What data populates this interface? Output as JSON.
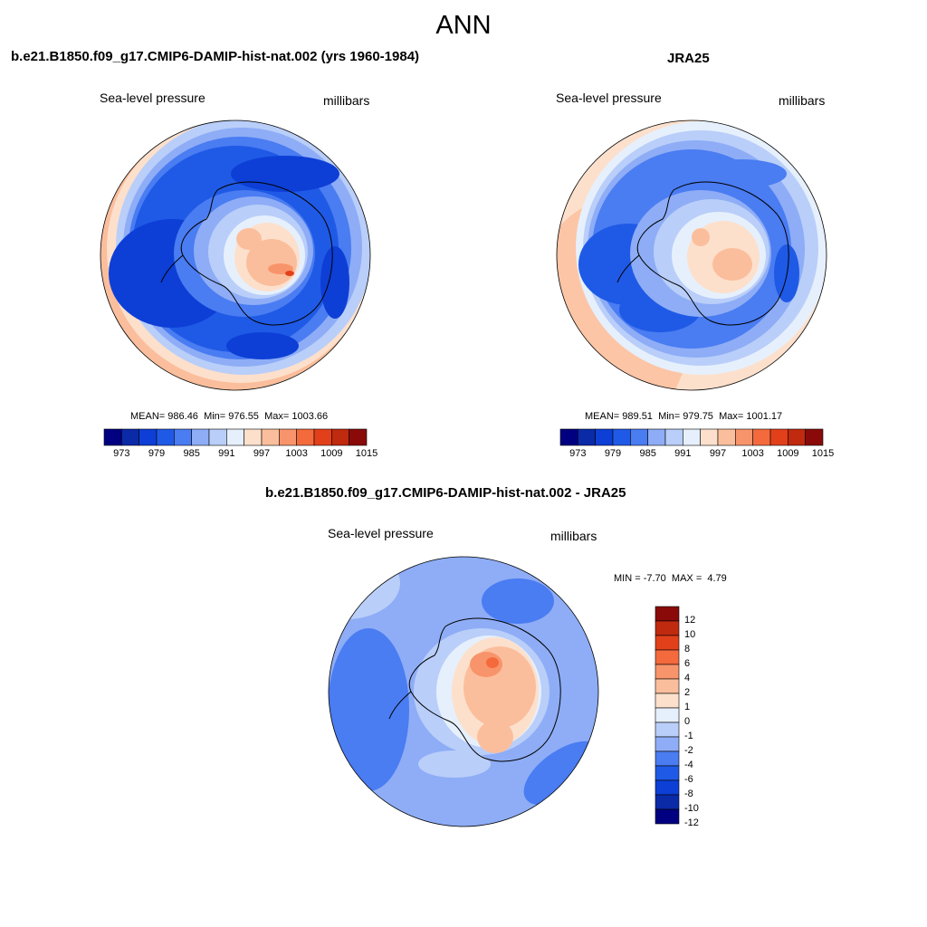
{
  "main_title": "ANN",
  "variable_label": "Sea-level pressure",
  "units_label": "millibars",
  "panels": [
    {
      "title": "b.e21.B1850.f09_g17.CMIP6-DAMIP-hist-nat.002 (yrs 1960-1984)",
      "stats": {
        "mean_label": "MEAN=",
        "mean": "986.46",
        "min_label": "Min=",
        "min": "976.55",
        "max_label": "Max=",
        "max": "1003.66"
      }
    },
    {
      "title": "JRA25",
      "stats": {
        "mean_label": "MEAN=",
        "mean": "989.51",
        "min_label": "Min=",
        "min": "979.75",
        "max_label": "Max=",
        "max": "1001.17"
      }
    }
  ],
  "diff_panel": {
    "title": "b.e21.B1850.f09_g17.CMIP6-DAMIP-hist-nat.002 - JRA25",
    "stats": {
      "min_label": "MIN =",
      "min": "-7.70",
      "max_label": "MAX =",
      "max": "4.79"
    }
  },
  "abs_colorbar": {
    "colors": [
      "#000080",
      "#0a2aa8",
      "#0d3fd6",
      "#1f5ae6",
      "#4a7cf2",
      "#8eadf6",
      "#b9cef9",
      "#e6f0fc",
      "#fce0cc",
      "#fbbe9c",
      "#f8946b",
      "#f46a3d",
      "#e2401b",
      "#c02a0e",
      "#8a0a0a"
    ],
    "tick_labels": [
      "973",
      "979",
      "985",
      "991",
      "997",
      "1003",
      "1009",
      "1015"
    ]
  },
  "diff_colorbar": {
    "colors": [
      "#000080",
      "#0a2aa8",
      "#0d3fd6",
      "#1f5ae6",
      "#4a7cf2",
      "#8eadf6",
      "#b9cef9",
      "#e6f0fc",
      "#fce0cc",
      "#fbbe9c",
      "#f8946b",
      "#f46a3d",
      "#e2401b",
      "#c02a0e",
      "#8a0a0a"
    ],
    "tick_labels": [
      "12",
      "10",
      "8",
      "6",
      "4",
      "2",
      "1",
      "0",
      "-1",
      "-2",
      "-4",
      "-6",
      "-8",
      "-10",
      "-12"
    ]
  }
}
